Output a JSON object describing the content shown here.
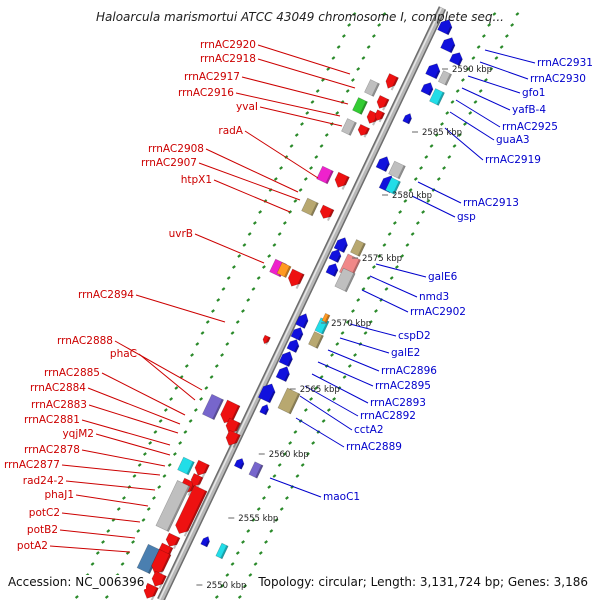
{
  "title": "Haloarcula marismortui ATCC 43049 chromosome I, complete seq...",
  "accession": "Accession: NC_006396",
  "topology": "Topology: circular; Length: 3,131,724 bp; Genes: 3,186",
  "colors": {
    "left_label": "#cc0000",
    "right_label": "#0000cc",
    "left_gene": "#ee1111",
    "right_gene": "#1111dd",
    "backbone": "#9a9a9a",
    "tick": "#2a8a2a",
    "cyan": "#22dde8",
    "magenta": "#ee22cc",
    "green": "#33cc33",
    "olive": "#b8a870",
    "purple": "#7766cc",
    "salmon": "#f08888",
    "orange": "#ff9922",
    "steel": "#4a7fb0",
    "grey": "#bfbfbf"
  },
  "scale_labels": [
    "2590 kbp",
    "2585 kbp",
    "2580 kbp",
    "2575 kbp",
    "2570 kbp",
    "2565 kbp",
    "2560 kbp",
    "2555 kbp",
    "2550 kbp"
  ],
  "left_labels": [
    "rrnAC2920",
    "rrnAC2918",
    "rrnAC2917",
    "rrnAC2916",
    "yvaI",
    "radA",
    "rrnAC2908",
    "rrnAC2907",
    "htpX1",
    "uvrB",
    "rrnAC2894",
    "rrnAC2888",
    "phaC",
    "rrnAC2885",
    "rrnAC2884",
    "rrnAC2883",
    "rrnAC2881",
    "yqjM2",
    "rrnAC2878",
    "rrnAC2877",
    "rad24-2",
    "phaJ1",
    "potC2",
    "potB2",
    "potA2"
  ],
  "right_labels": [
    "rrnAC2931",
    "rrnAC2930",
    "gfo1",
    "yafB-4",
    "rrnAC2925",
    "guaA3",
    "rrnAC2919",
    "rrnAC2913",
    "gsp",
    "galE6",
    "nmd3",
    "rrnAC2902",
    "cspD2",
    "galE2",
    "rrnAC2896",
    "rrnAC2895",
    "rrnAC2893",
    "rrnAC2892",
    "cctA2",
    "rrnAC2889",
    "maoC1"
  ]
}
